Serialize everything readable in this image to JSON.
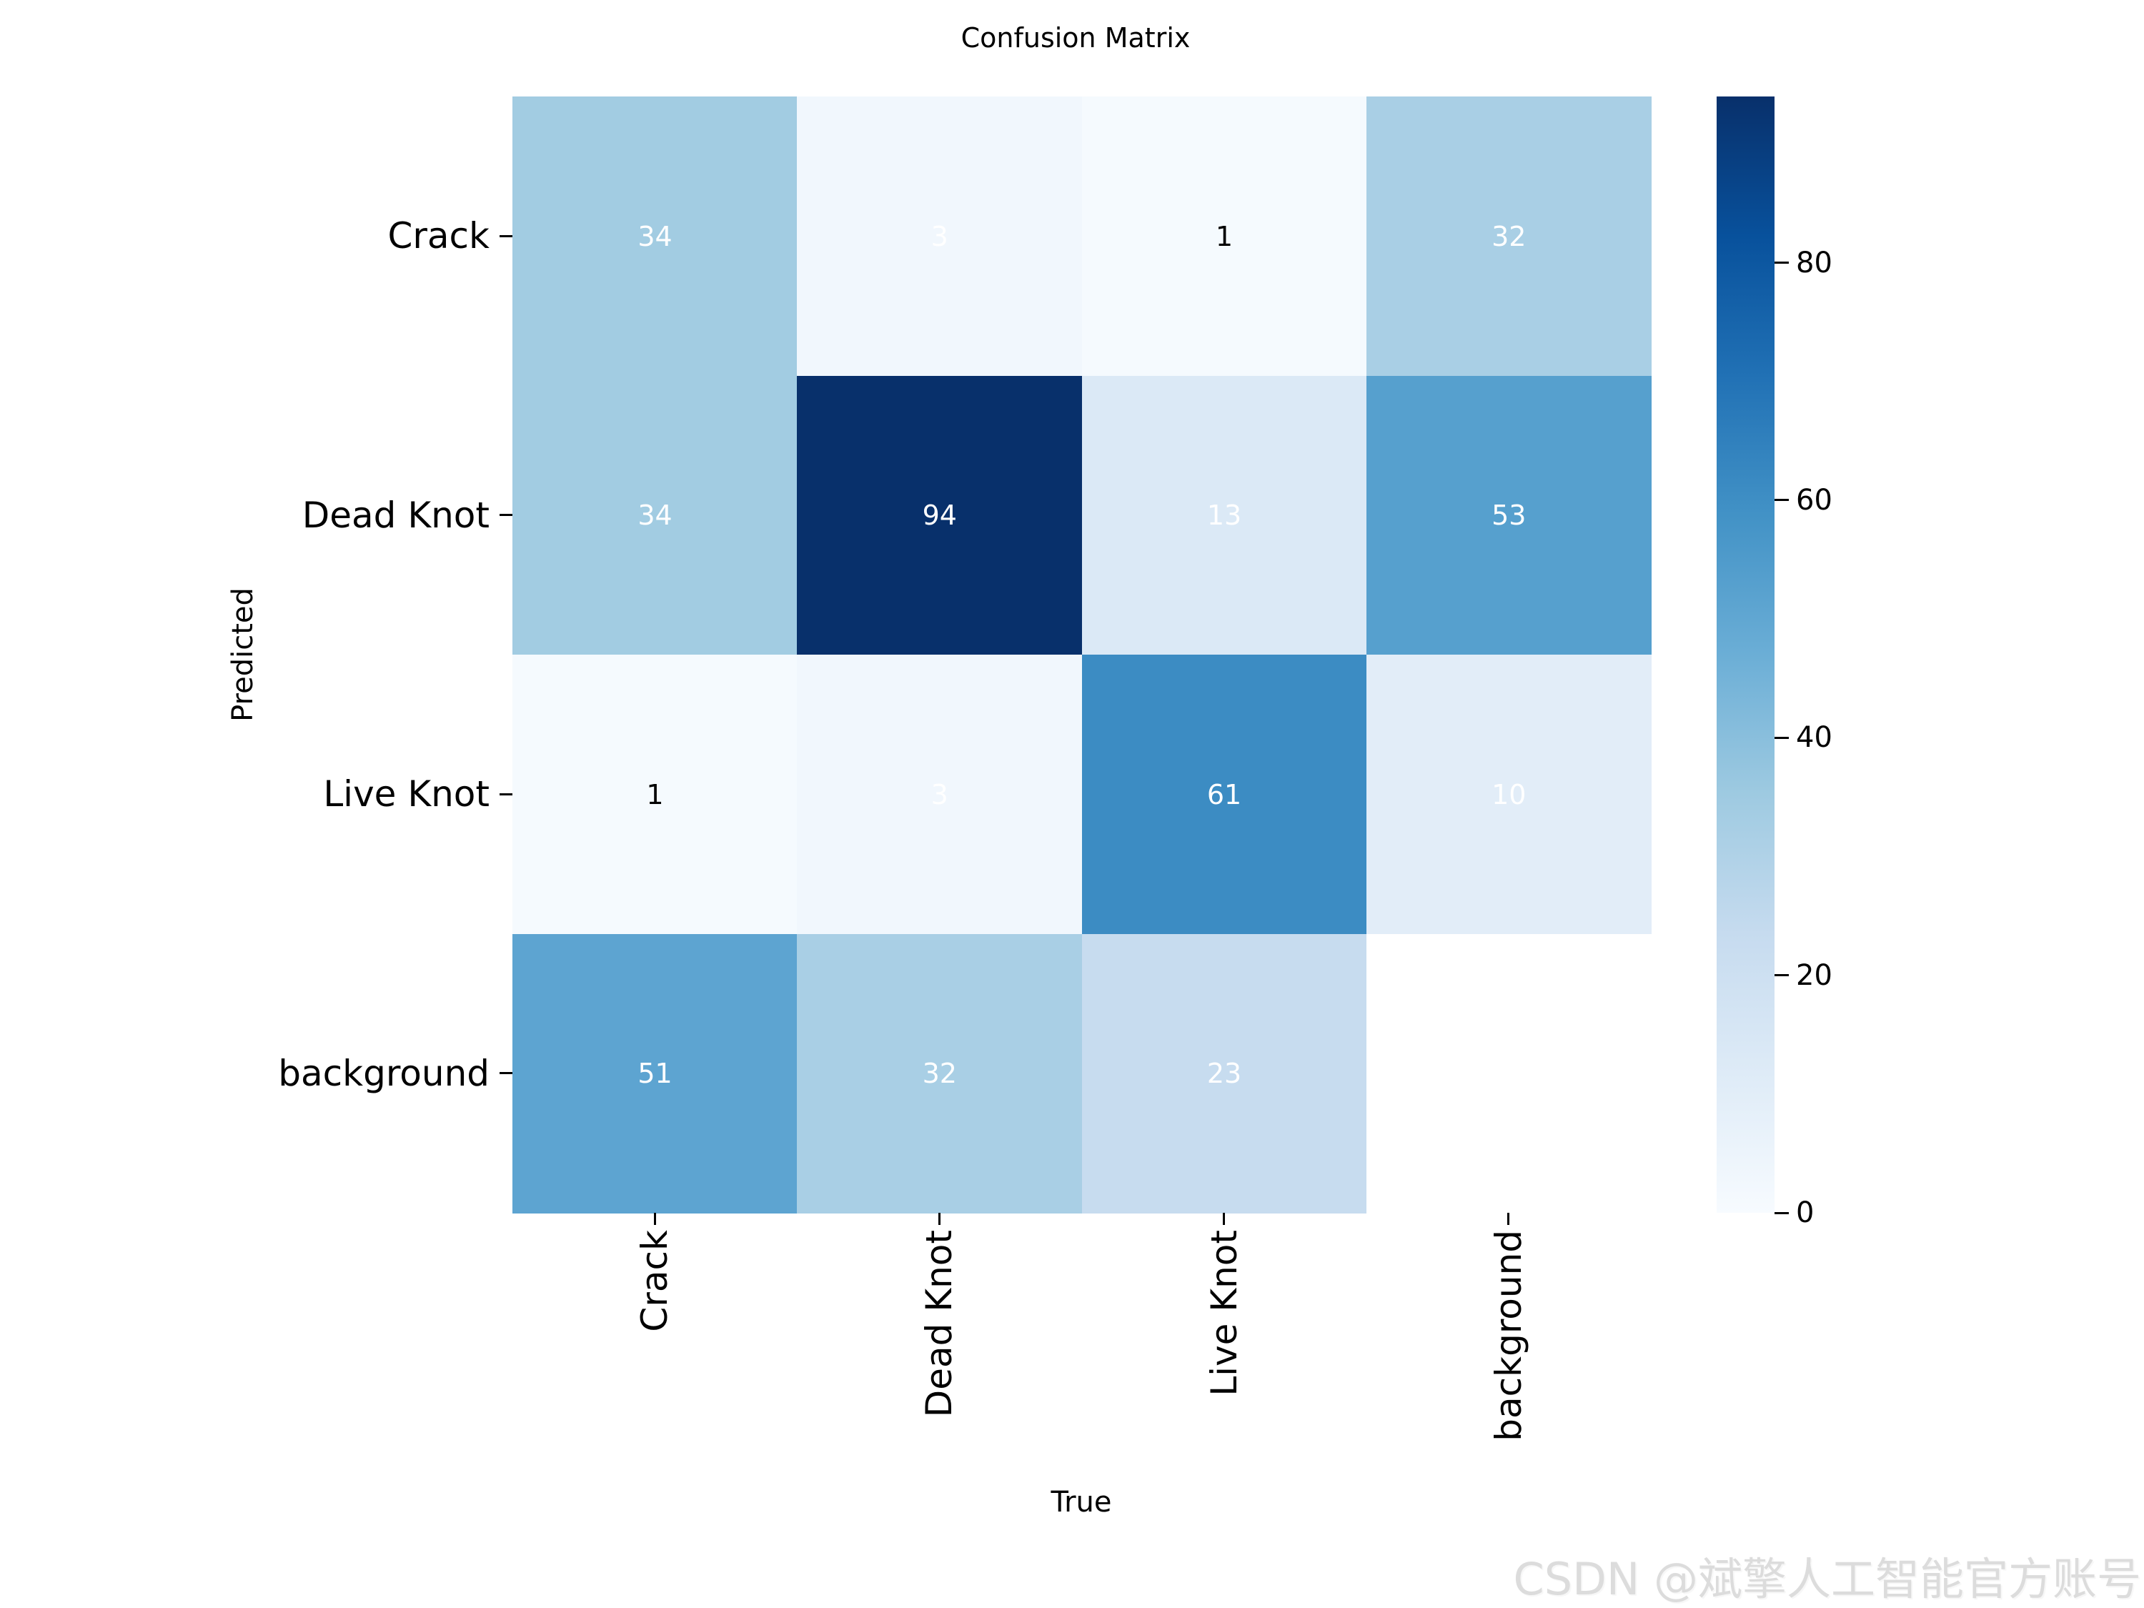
{
  "figure": {
    "title": "Confusion Matrix",
    "watermark": "CSDN @斌擎人工智能官方账号"
  },
  "chart_data": {
    "type": "heatmap",
    "title": "Confusion Matrix",
    "xlabel": "True",
    "ylabel": "Predicted",
    "x_categories": [
      "Crack",
      "Dead Knot",
      "Live Knot",
      "background"
    ],
    "y_categories": [
      "Crack",
      "Dead Knot",
      "Live Knot",
      "background"
    ],
    "matrix": [
      [
        34,
        3,
        1,
        32
      ],
      [
        34,
        94,
        13,
        53
      ],
      [
        1,
        3,
        61,
        10
      ],
      [
        51,
        32,
        23,
        null
      ]
    ],
    "annotations": [
      [
        "34",
        "3",
        "1",
        "32"
      ],
      [
        "34",
        "94",
        "13",
        "53"
      ],
      [
        "1",
        "3",
        "61",
        "10"
      ],
      [
        "51",
        "32",
        "23",
        ""
      ]
    ],
    "annotation_colors": [
      [
        "#ffffff",
        "#ffffff",
        "#000000",
        "#ffffff"
      ],
      [
        "#ffffff",
        "#ffffff",
        "#ffffff",
        "#ffffff"
      ],
      [
        "#000000",
        "#ffffff",
        "#ffffff",
        "#ffffff"
      ],
      [
        "#ffffff",
        "#ffffff",
        "#ffffff",
        ""
      ]
    ],
    "vmin": 0,
    "vmax": 94,
    "colormap": "Blues",
    "colormap_stops": [
      "#f7fbff",
      "#deebf7",
      "#c6dbef",
      "#9ecae1",
      "#6baed6",
      "#4292c6",
      "#2171b5",
      "#08519c",
      "#08306b"
    ],
    "masked_cell_color": "#ffffff",
    "colorbar_ticks": [
      0,
      20,
      40,
      60,
      80
    ],
    "grid": false,
    "legend_position": "right-colorbar",
    "tick_color": "#000000"
  }
}
